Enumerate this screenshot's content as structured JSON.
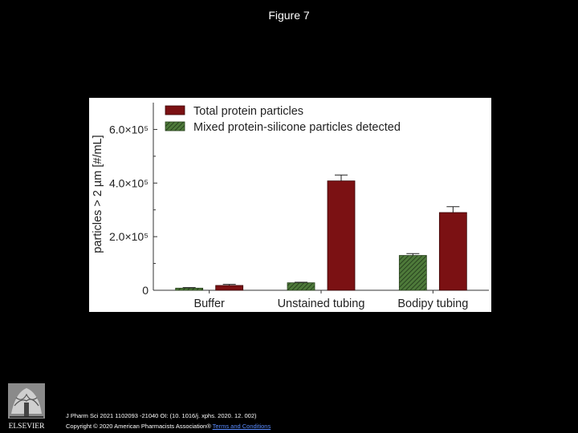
{
  "slide": {
    "title": "Figure 7",
    "citation": "J Pharm Sci 2021 1102093 -21040 OI: (10. 1016/j. xphs. 2020. 12. 002)",
    "copyright": "Copyright © 2020 American Pharmacists Association®",
    "terms_link": "Terms and Conditions",
    "publisher_logo": "elsevier-tree-logo",
    "publisher_name": "ELSEVIER"
  },
  "colors": {
    "total_protein": "#7b1113",
    "mixed_particles": "#4e7a3a",
    "background": "#000000"
  },
  "chart_data": {
    "type": "bar",
    "categories": [
      "Buffer",
      "Unstained tubing",
      "Bodipy tubing"
    ],
    "ylabel": "particles > 2 µm [#/mL]",
    "yticks": [
      {
        "value": 0,
        "label": "0"
      },
      {
        "value": 200000,
        "label": "2.0×10⁵"
      },
      {
        "value": 400000,
        "label": "4.0×10⁵"
      },
      {
        "value": 600000,
        "label": "6.0×10⁵"
      }
    ],
    "ylim": [
      0,
      700000
    ],
    "legend": "top-left",
    "series": [
      {
        "name": "Mixed protein-silicone particles detected",
        "pattern": "hatched",
        "values": [
          8000,
          28000,
          130000
        ],
        "errors": [
          2000,
          2000,
          7000
        ]
      },
      {
        "name": "Total protein particles",
        "pattern": "solid",
        "values": [
          18000,
          408000,
          290000
        ],
        "errors": [
          4000,
          22000,
          22000
        ]
      }
    ]
  }
}
